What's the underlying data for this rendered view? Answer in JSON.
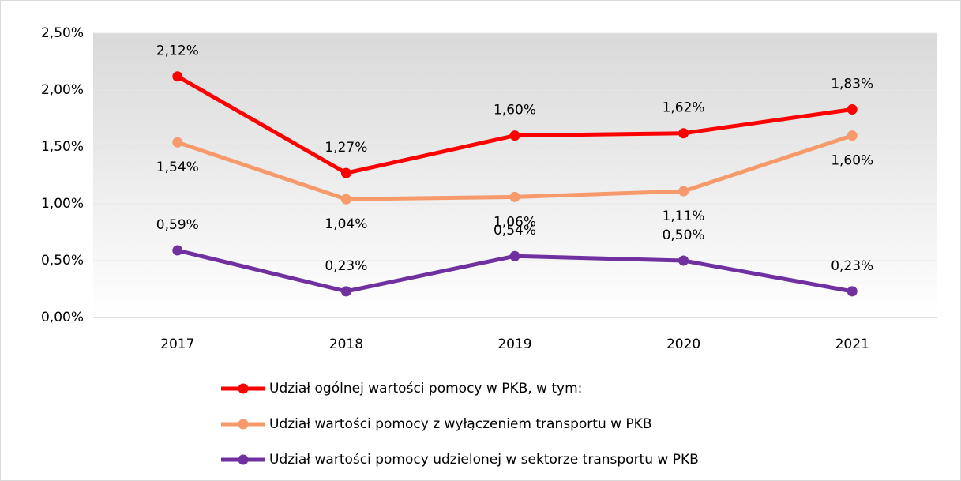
{
  "chart_data": {
    "type": "line",
    "categories": [
      "2017",
      "2018",
      "2019",
      "2020",
      "2021"
    ],
    "series": [
      {
        "name": "Udział ogólnej wartości pomocy w PKB, w tym:",
        "color": "#ff0000",
        "values": [
          2.12,
          1.27,
          1.6,
          1.62,
          1.83
        ],
        "value_labels": [
          "2,12%",
          "1,27%",
          "1,60%",
          "1,62%",
          "1,83%"
        ]
      },
      {
        "name": "Udział wartości pomocy z wyłączeniem transportu w PKB",
        "color": "#f79a6b",
        "values": [
          1.54,
          1.04,
          1.06,
          1.11,
          1.6
        ],
        "value_labels": [
          "1,54%",
          "1,04%",
          "1,06%",
          "1,11%",
          "1,60%"
        ]
      },
      {
        "name": "Udział wartości pomocy udzielonej w sektorze transportu w PKB",
        "color": "#7030a0",
        "values": [
          0.59,
          0.23,
          0.54,
          0.5,
          0.23
        ],
        "value_labels": [
          "0,59%",
          "0,23%",
          "0,54%",
          "0,50%",
          "0,23%"
        ]
      }
    ],
    "ylim": [
      0,
      2.5
    ],
    "yticks": [
      {
        "value": 0,
        "label": "0,00%"
      },
      {
        "value": 0.5,
        "label": "0,50%"
      },
      {
        "value": 1,
        "label": "1,00%"
      },
      {
        "value": 1.5,
        "label": "1,50%"
      },
      {
        "value": 2,
        "label": "2,00%"
      },
      {
        "value": 2.5,
        "label": "2,50%"
      }
    ],
    "grid": true,
    "legend": "bottom"
  }
}
